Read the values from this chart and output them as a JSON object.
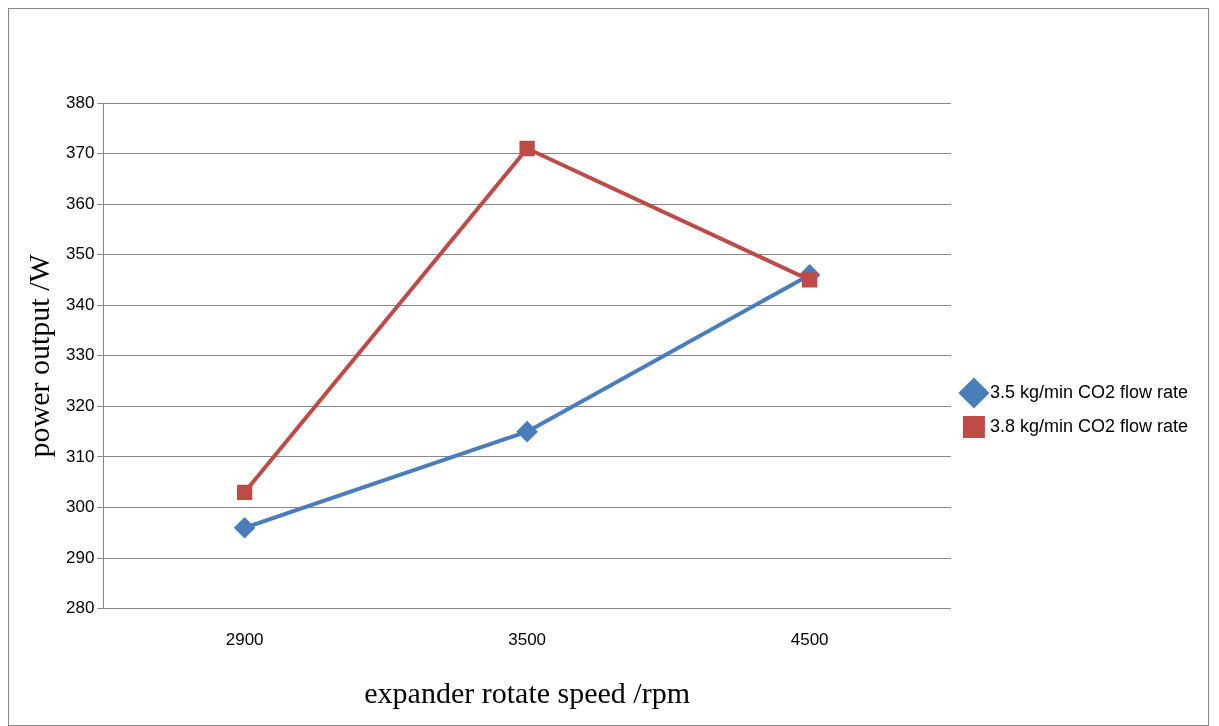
{
  "chart_data": {
    "type": "line",
    "xlabel": "expander rotate speed /rpm",
    "ylabel": "power output /W",
    "categories": [
      "2900",
      "3500",
      "4500"
    ],
    "series": [
      {
        "name": "3.5 kg/min CO2 flow rate",
        "color": "#4a7ebb",
        "values": [
          296,
          315,
          346
        ],
        "marker": "diamond"
      },
      {
        "name": "3.8 kg/min CO2 flow rate",
        "color": "#be4b48",
        "values": [
          303,
          371,
          345
        ],
        "marker": "square"
      }
    ],
    "ylim": [
      280,
      380
    ],
    "yticks": [
      280,
      290,
      300,
      310,
      320,
      330,
      340,
      350,
      360,
      370,
      380
    ],
    "grid": "y",
    "legend": "right",
    "line_style": "solid"
  }
}
